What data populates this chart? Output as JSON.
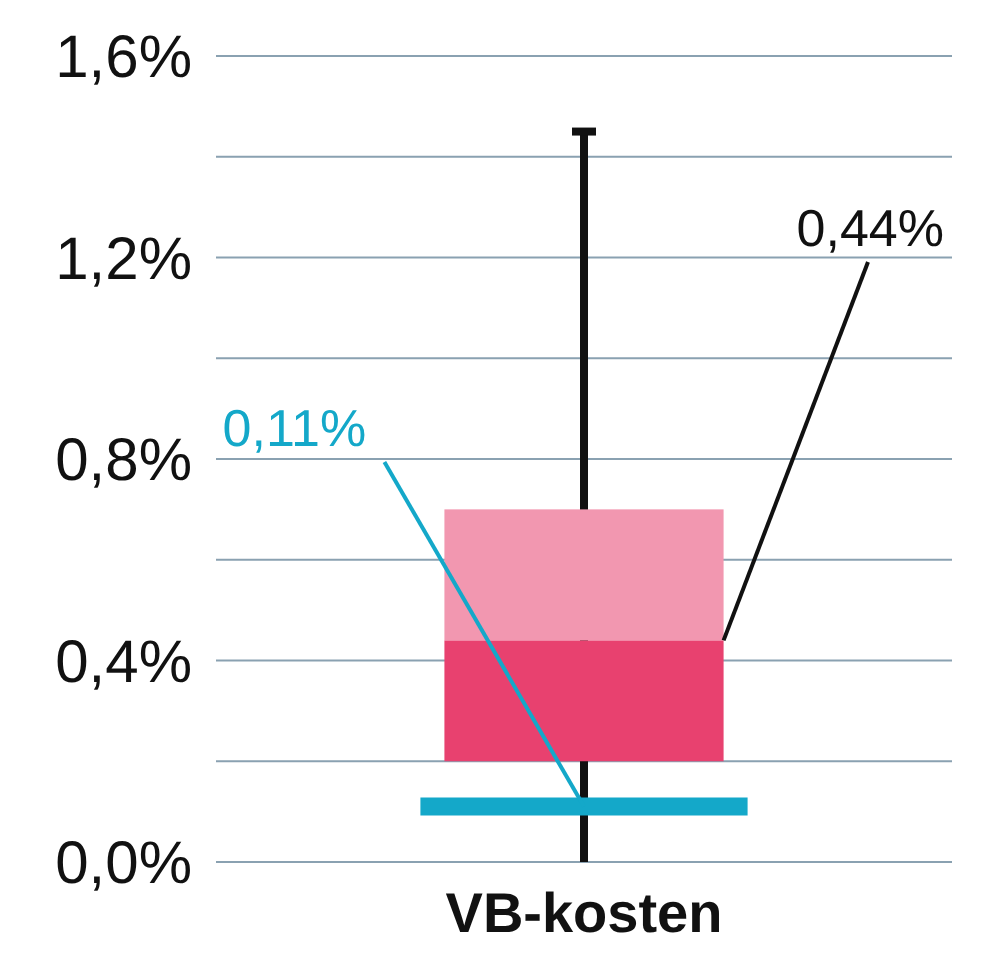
{
  "chart_data": {
    "type": "box",
    "categories": [
      "VB-kosten"
    ],
    "series": [
      {
        "color": "#e8416f",
        "boxes": [
          {
            "low": 0,
            "q1": 0.2,
            "median": 0.44,
            "q3": 0.7,
            "high": 1.45
          }
        ]
      }
    ],
    "ylim": [
      0,
      1.6
    ],
    "yticks": [
      {
        "value": 0,
        "label": "0,0%"
      },
      {
        "value": 0.2,
        "label": null
      },
      {
        "value": 0.4,
        "label": "0,4%"
      },
      {
        "value": 0.6,
        "label": null
      },
      {
        "value": 0.8,
        "label": "0,8%"
      },
      {
        "value": 1.0,
        "label": null
      },
      {
        "value": 1.2,
        "label": "1,2%"
      },
      {
        "value": 1.4,
        "label": null
      },
      {
        "value": 1.6,
        "label": "1,6%"
      }
    ],
    "grid": "y",
    "ref_lines": [
      {
        "axis": "y",
        "value": 0.11,
        "label": "0,11%",
        "color": "#14a8c9"
      }
    ],
    "annotations": [
      "0,44%"
    ]
  }
}
